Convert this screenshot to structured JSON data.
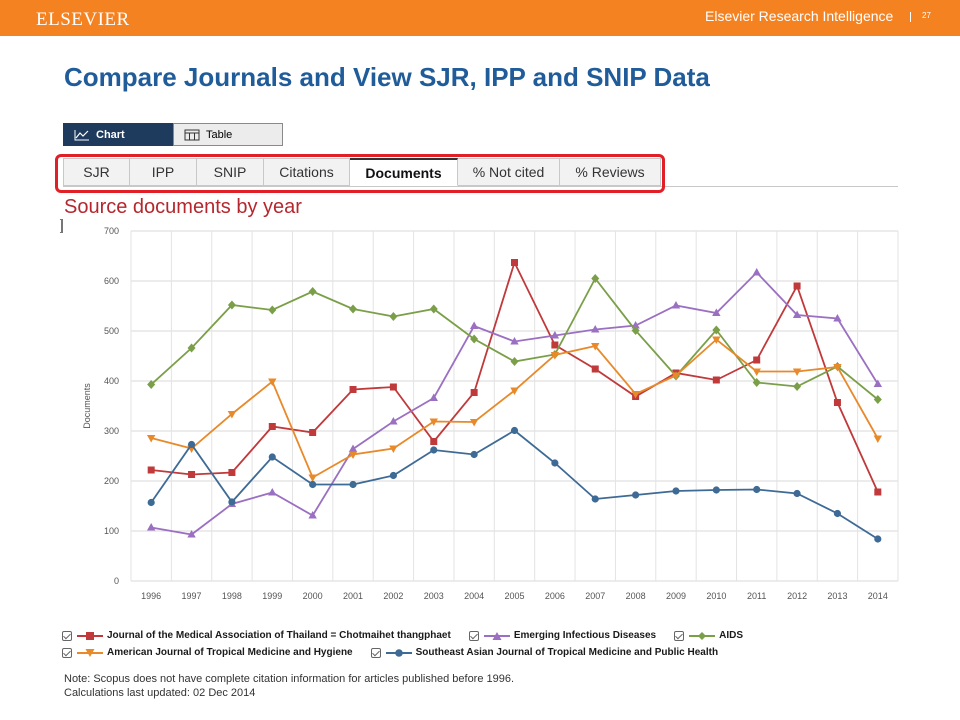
{
  "header": {
    "logo": "ELSEVIER",
    "org": "Elsevier Research Intelligence",
    "page_number": "27",
    "bar_color": "#f58220"
  },
  "slide": {
    "title": "Compare Journals and View SJR, IPP and SNIP Data"
  },
  "view_tabs": [
    {
      "label": "Chart",
      "icon": "line-chart-icon",
      "active": true
    },
    {
      "label": "Table",
      "icon": "table-icon",
      "active": false
    }
  ],
  "metric_tabs": [
    {
      "label": "SJR",
      "active": false
    },
    {
      "label": "IPP",
      "active": false
    },
    {
      "label": "SNIP",
      "active": false
    },
    {
      "label": "Citations",
      "active": false
    },
    {
      "label": "Documents",
      "active": true
    },
    {
      "label": "% Not cited",
      "active": false
    },
    {
      "label": "% Reviews",
      "active": false
    }
  ],
  "highlight_color": "#e11f26",
  "chart_title": "Source documents by year",
  "chart_data": {
    "type": "line",
    "title": "Source documents by year",
    "xlabel": "",
    "ylabel": "Documents",
    "ylim": [
      0,
      700
    ],
    "yticks": [
      0,
      100,
      200,
      300,
      400,
      500,
      600,
      700
    ],
    "grid": true,
    "legend_position": "bottom",
    "categories": [
      "1996",
      "1997",
      "1998",
      "1999",
      "2000",
      "2001",
      "2002",
      "2003",
      "2004",
      "2005",
      "2006",
      "2007",
      "2008",
      "2009",
      "2010",
      "2011",
      "2012",
      "2013",
      "2014"
    ],
    "series": [
      {
        "name": "Journal of the Medical Association of Thailand = Chotmaihet thangphaet",
        "color": "#c0393b",
        "marker": "square",
        "values": [
          222,
          213,
          217,
          309,
          297,
          383,
          388,
          279,
          377,
          637,
          472,
          424,
          369,
          416,
          402,
          442,
          590,
          357,
          178
        ]
      },
      {
        "name": "Emerging Infectious Diseases",
        "color": "#9b6fc1",
        "marker": "triangle-up",
        "values": [
          107,
          93,
          154,
          177,
          131,
          264,
          319,
          366,
          510,
          479,
          491,
          503,
          511,
          551,
          536,
          617,
          532,
          525,
          394
        ]
      },
      {
        "name": "AIDS",
        "color": "#7a9f48",
        "marker": "diamond",
        "values": [
          393,
          466,
          552,
          542,
          579,
          544,
          529,
          544,
          484,
          439,
          453,
          605,
          501,
          410,
          502,
          397,
          389,
          429,
          363
        ]
      },
      {
        "name": "American Journal of Tropical Medicine and Hygiene",
        "color": "#e8892a",
        "marker": "triangle-down",
        "values": [
          286,
          265,
          334,
          399,
          207,
          253,
          265,
          319,
          318,
          381,
          452,
          470,
          374,
          411,
          483,
          419,
          419,
          428,
          285
        ]
      },
      {
        "name": "Southeast Asian Journal of Tropical Medicine and Public Health",
        "color": "#3e6a96",
        "marker": "circle",
        "values": [
          157,
          273,
          158,
          248,
          193,
          193,
          211,
          262,
          253,
          301,
          236,
          164,
          172,
          180,
          182,
          183,
          175,
          135,
          84
        ]
      }
    ]
  },
  "note": {
    "line1": "Note: Scopus does not have complete citation information for articles published before 1996.",
    "line2": "Calculations last updated: 02 Dec 2014"
  }
}
